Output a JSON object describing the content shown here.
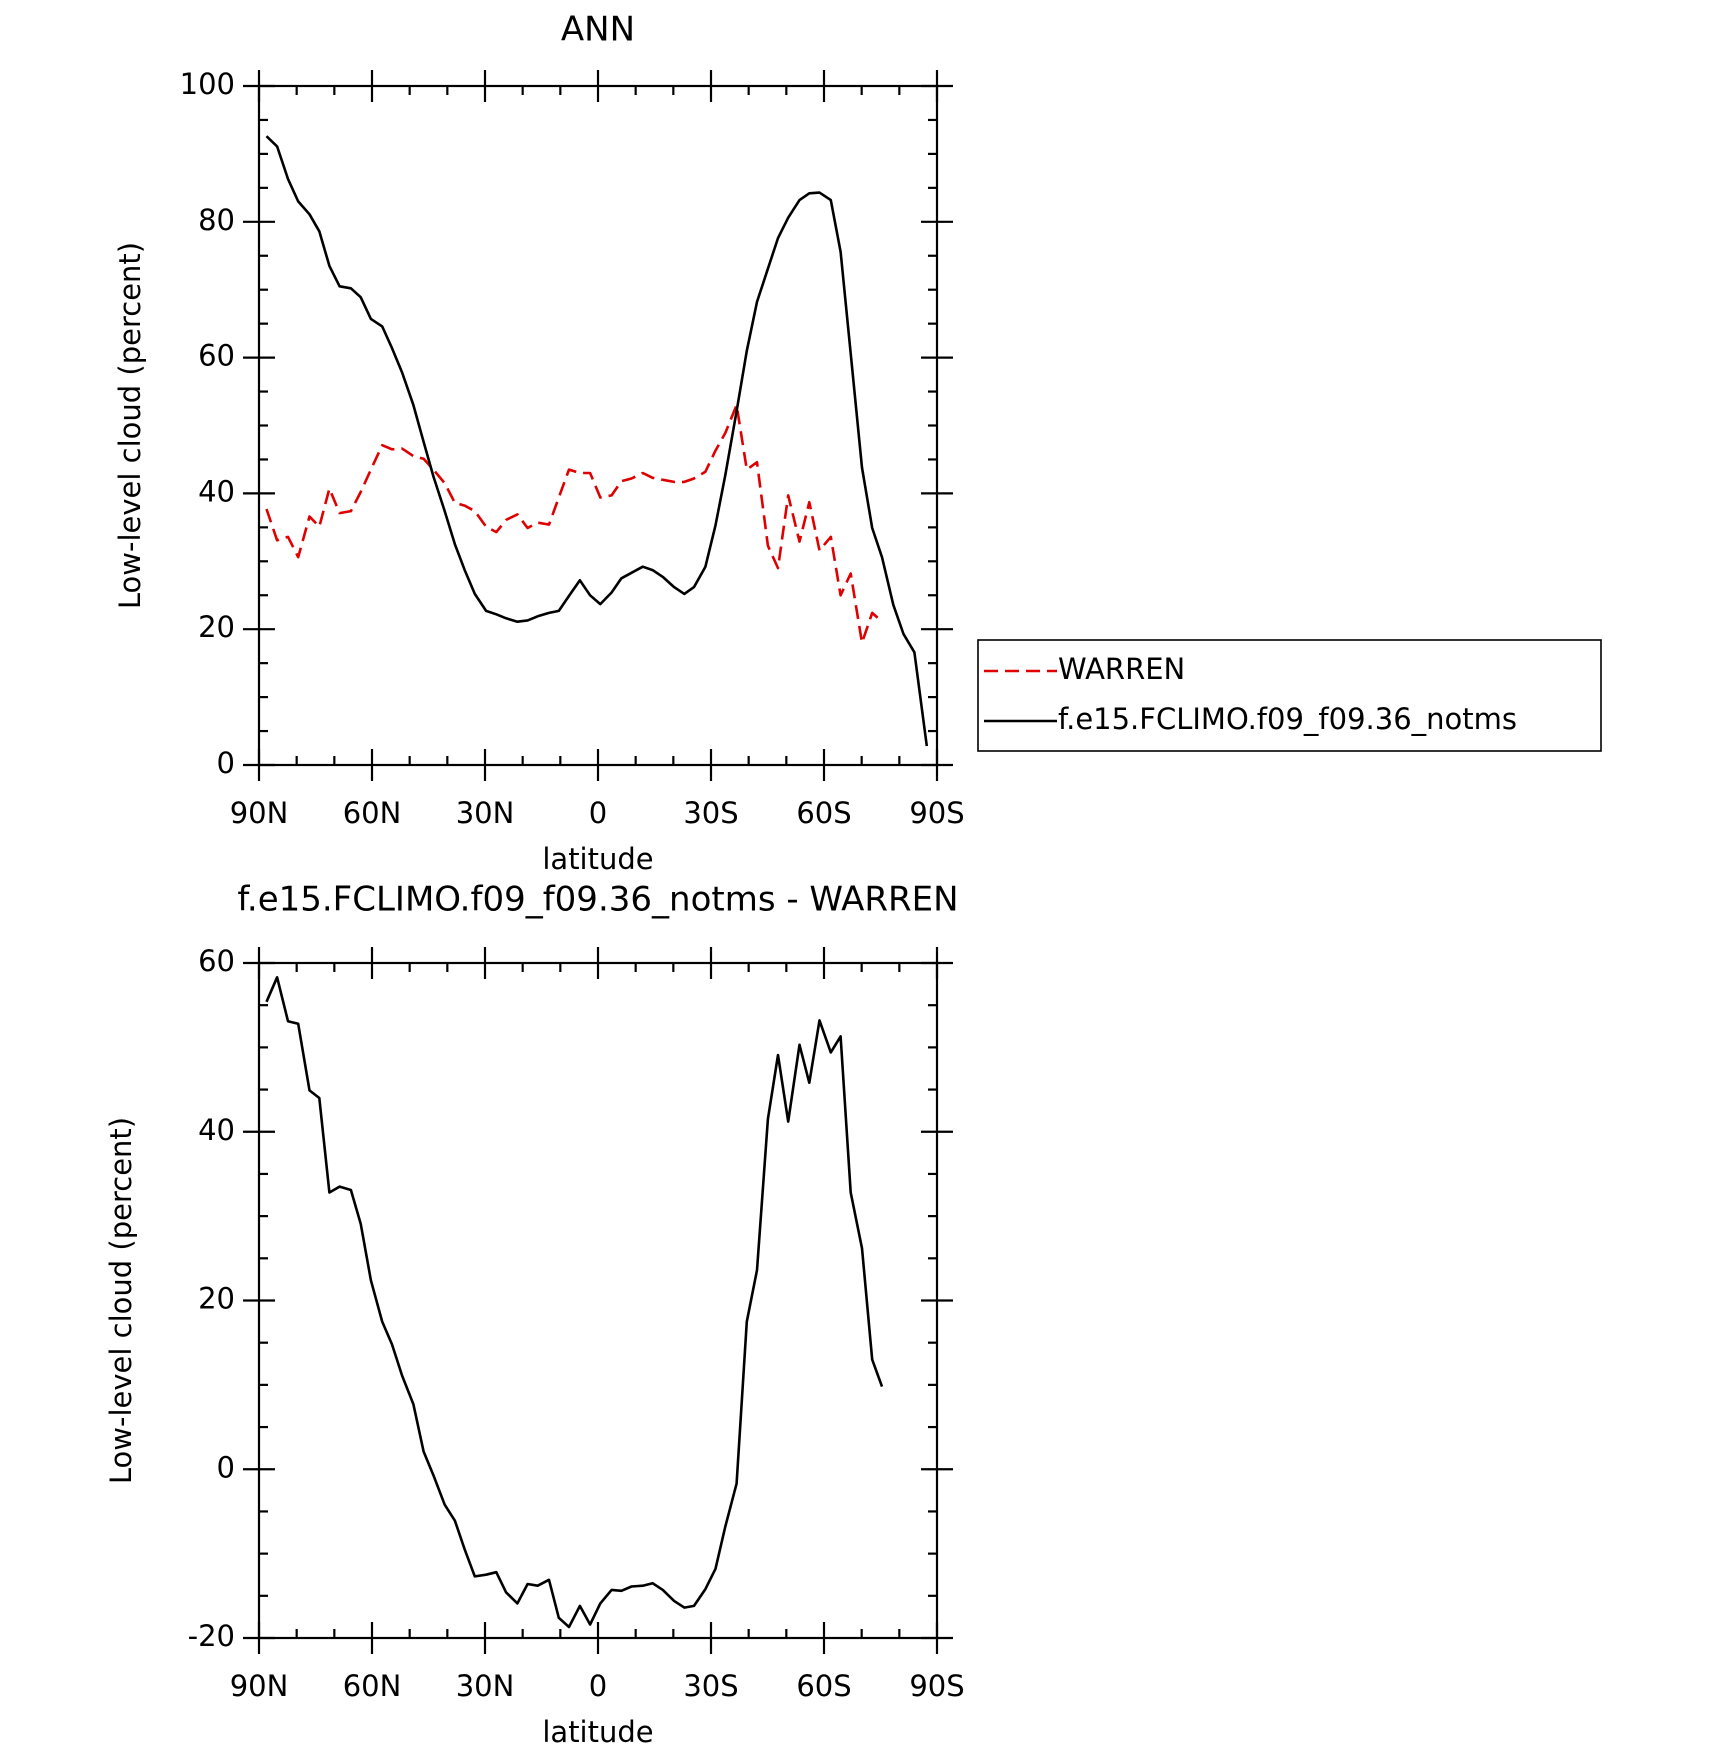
{
  "chart_data": [
    {
      "type": "line",
      "title": "ANN",
      "xlabel": "latitude",
      "ylabel": "Low-level cloud (percent)",
      "xlim": [
        90,
        -90
      ],
      "xticks": [
        {
          "value": 90,
          "label": "90N"
        },
        {
          "value": 60,
          "label": "60N"
        },
        {
          "value": 30,
          "label": "30N"
        },
        0,
        {
          "value": -30,
          "label": "30S"
        },
        {
          "value": -60,
          "label": "60S"
        },
        {
          "value": -90,
          "label": "90S"
        }
      ],
      "ylim": [
        0,
        100
      ],
      "yticks": [
        0,
        20,
        40,
        60,
        80,
        100
      ],
      "legend": "right",
      "series": [
        {
          "name": "WARREN",
          "color": "#e00000",
          "dashed": true,
          "x": [
            88,
            85.2,
            82.3,
            79.6,
            76.6,
            74,
            71.3,
            68.6,
            65.6,
            63,
            60.3,
            57.3,
            54.7,
            52,
            49,
            46.3,
            43.7,
            40.7,
            38,
            35.4,
            32.7,
            29.7,
            27,
            24.4,
            21.4,
            18.7,
            16,
            13,
            10.4,
            7.7,
            4.8,
            2.1,
            -0.6,
            -3.6,
            -6.2,
            -8.9,
            -11.9,
            -14.5,
            -17.2,
            -20.2,
            -22.9,
            -25.5,
            -28.5,
            -31.2,
            -33.8,
            -36.8,
            -39.5,
            -42.2,
            -45.1,
            -47.8,
            -50.5,
            -53.5,
            -56.1,
            -58.8,
            -61.8,
            -64.4,
            -67.1,
            -70.1,
            -72.8,
            -75.4
          ],
          "values": [
            37.7,
            33.1,
            33.6,
            30.6,
            36.6,
            35.1,
            40.7,
            37.1,
            37.4,
            40.2,
            43.5,
            47.1,
            46.5,
            46.6,
            45.5,
            45.1,
            43.5,
            41.5,
            38.6,
            38.2,
            37.4,
            35.1,
            34.3,
            36.1,
            36.9,
            34.9,
            35.7,
            35.4,
            39.4,
            43.5,
            43,
            43,
            39.4,
            39.7,
            41.8,
            42.2,
            43,
            42.3,
            42,
            41.7,
            41.7,
            42.2,
            43.2,
            46.3,
            48.9,
            53,
            43.5,
            44.6,
            32.3,
            29,
            39.7,
            32.9,
            38.7,
            31.6,
            33.6,
            25,
            28.2,
            18,
            22.4,
            21.1
          ]
        },
        {
          "name": "f.e15.FCLIMO.f09_f09.36_notms",
          "color": "#000000",
          "dashed": false,
          "x": [
            88,
            85.2,
            82.3,
            79.6,
            76.6,
            74,
            71.3,
            68.6,
            65.6,
            63,
            60.3,
            57.3,
            54.7,
            52,
            49,
            46.3,
            43.7,
            40.7,
            38,
            35.4,
            32.7,
            29.7,
            27,
            24.4,
            21.4,
            18.7,
            16,
            13,
            10.4,
            7.7,
            4.8,
            2.1,
            -0.6,
            -3.6,
            -6.2,
            -8.9,
            -11.9,
            -14.5,
            -17.2,
            -20.2,
            -22.9,
            -25.5,
            -28.5,
            -31.2,
            -33.8,
            -36.8,
            -39.5,
            -42.2,
            -45.1,
            -47.8,
            -50.5,
            -53.5,
            -56.1,
            -58.8,
            -61.8,
            -64.4,
            -67.1,
            -70.1,
            -72.8,
            -75.4,
            -78.4,
            -81.1,
            -84,
            -87.3
          ],
          "values": [
            92.6,
            91.1,
            86.3,
            83,
            81.1,
            78.6,
            73.5,
            70.5,
            70.2,
            68.9,
            65.7,
            64.6,
            61.4,
            57.8,
            53,
            47.6,
            42.5,
            37.4,
            32.5,
            28.7,
            25.2,
            22.7,
            22.2,
            21.6,
            21.1,
            21.3,
            21.9,
            22.4,
            22.7,
            24.9,
            27.2,
            25,
            23.7,
            25.4,
            27.5,
            28.3,
            29.2,
            28.7,
            27.7,
            26.2,
            25.2,
            26.2,
            29.2,
            35.3,
            42.7,
            52.1,
            61,
            68.2,
            73.1,
            77.6,
            80.6,
            83.2,
            84.2,
            84.3,
            83.2,
            75.6,
            60.6,
            43.8,
            34.9,
            30.6,
            23.6,
            19.3,
            16.6,
            2.8
          ]
        }
      ]
    },
    {
      "type": "line",
      "title": "f.e15.FCLIMO.f09_f09.36_notms - WARREN",
      "xlabel": "latitude",
      "ylabel": "Low-level cloud (percent)",
      "xlim": [
        90,
        -90
      ],
      "xticks": [
        {
          "value": 90,
          "label": "90N"
        },
        {
          "value": 60,
          "label": "60N"
        },
        {
          "value": 30,
          "label": "30N"
        },
        0,
        {
          "value": -30,
          "label": "30S"
        },
        {
          "value": -60,
          "label": "60S"
        },
        {
          "value": -90,
          "label": "90S"
        }
      ],
      "ylim": [
        -20,
        60
      ],
      "yticks": [
        -20,
        0,
        20,
        40,
        60
      ],
      "series": [
        {
          "color": "#000000",
          "dashed": false,
          "x": [
            88,
            85.2,
            82.3,
            79.6,
            76.6,
            74,
            71.3,
            68.6,
            65.6,
            63,
            60.3,
            57.3,
            54.7,
            52,
            49,
            46.3,
            43.7,
            40.7,
            38,
            35.4,
            32.7,
            29.7,
            27,
            24.4,
            21.4,
            18.7,
            16,
            13,
            10.4,
            7.7,
            4.8,
            2.1,
            -0.6,
            -3.6,
            -6.2,
            -8.9,
            -11.9,
            -14.5,
            -17.2,
            -20.2,
            -22.9,
            -25.5,
            -28.5,
            -31.2,
            -33.8,
            -36.8,
            -39.5,
            -42.2,
            -45.1,
            -47.8,
            -50.5,
            -53.5,
            -56.1,
            -58.8,
            -61.8,
            -64.4,
            -67.1,
            -70.1,
            -72.8,
            -75.4
          ],
          "values": [
            55.4,
            58.3,
            53.1,
            52.8,
            44.9,
            44,
            32.8,
            33.5,
            33.1,
            29.1,
            22.4,
            17.5,
            14.8,
            11.1,
            7.7,
            2.1,
            -0.7,
            -4.2,
            -6.1,
            -9.5,
            -12.7,
            -12.5,
            -12.2,
            -14.6,
            -15.9,
            -13.6,
            -13.8,
            -13.1,
            -17.6,
            -18.7,
            -16.2,
            -18.4,
            -15.9,
            -14.3,
            -14.4,
            -13.9,
            -13.8,
            -13.5,
            -14.3,
            -15.6,
            -16.4,
            -16.2,
            -14.2,
            -11.8,
            -6.8,
            -1.7,
            17.5,
            23.6,
            41.5,
            49.1,
            41.2,
            50.3,
            45.8,
            53.2,
            49.4,
            51.3,
            32.8,
            26.2,
            13,
            9.8
          ]
        }
      ]
    }
  ]
}
